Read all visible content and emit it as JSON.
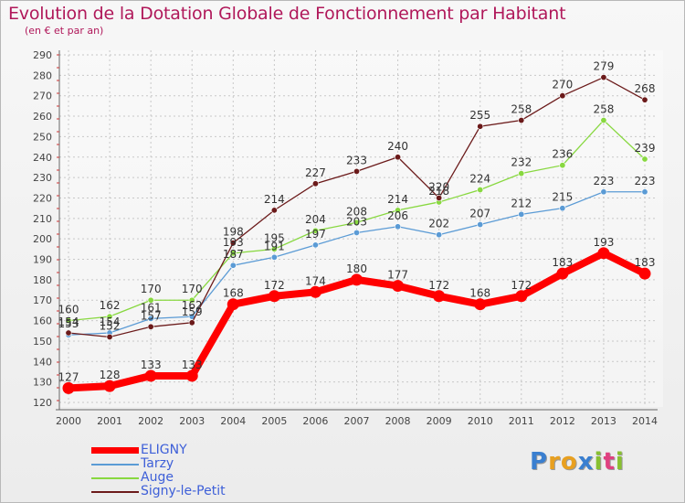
{
  "chart_data": {
    "type": "line",
    "title": "Evolution de la Dotation Globale de Fonctionnement par Habitant",
    "subtitle": "(en € et par an)",
    "x": [
      "2000",
      "2001",
      "2002",
      "2003",
      "2004",
      "2005",
      "2006",
      "2007",
      "2008",
      "2009",
      "2010",
      "2011",
      "2012",
      "2013",
      "2014"
    ],
    "ylim": [
      120,
      290
    ],
    "yticks": [
      120,
      130,
      140,
      150,
      160,
      170,
      180,
      190,
      200,
      210,
      220,
      230,
      240,
      250,
      260,
      270,
      280,
      290
    ],
    "grid": true,
    "legend_position": "bottom-left",
    "series": [
      {
        "name": "ELIGNY",
        "color": "#ff0000",
        "emphasis": true,
        "values": [
          127,
          128,
          133,
          133,
          168,
          172,
          174,
          180,
          177,
          172,
          168,
          172,
          183,
          193,
          183
        ]
      },
      {
        "name": "Tarzy",
        "color": "#5b9bd5",
        "values": [
          153,
          154,
          161,
          162,
          187,
          191,
          197,
          203,
          206,
          202,
          207,
          212,
          215,
          223,
          223
        ]
      },
      {
        "name": "Auge",
        "color": "#88d840",
        "values": [
          160,
          162,
          170,
          170,
          193,
          195,
          204,
          208,
          214,
          218,
          224,
          232,
          236,
          258,
          239
        ]
      },
      {
        "name": "Signy-le-Petit",
        "color": "#6b1a1a",
        "values": [
          154,
          152,
          157,
          159,
          198,
          214,
          227,
          233,
          240,
          220,
          255,
          258,
          270,
          279,
          268
        ]
      }
    ]
  },
  "logo": {
    "letters": [
      "P",
      "r",
      "o",
      "x",
      "i",
      "t",
      "i"
    ],
    "colors": [
      "#3a7fd0",
      "#e8a020",
      "#e8a020",
      "#3a7fd0",
      "#88c030",
      "#e04080",
      "#88c030"
    ]
  }
}
